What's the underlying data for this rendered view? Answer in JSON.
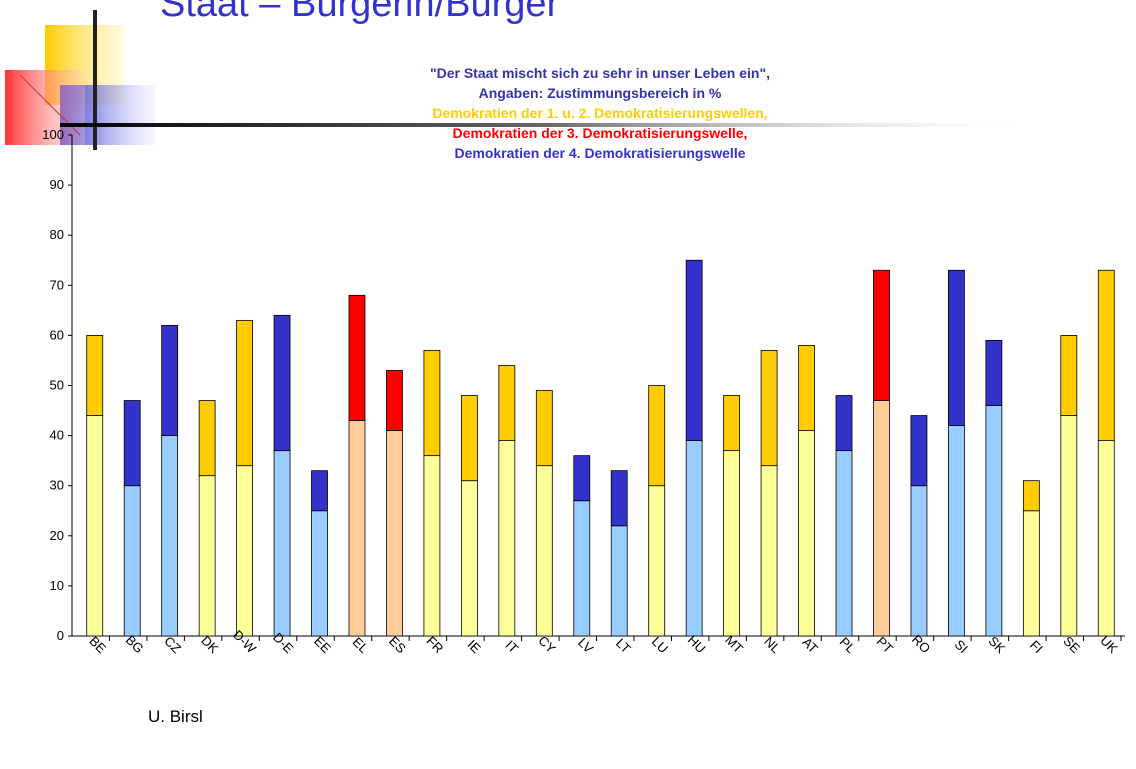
{
  "slide_title": "Staat – Bürgerin/Bürger",
  "footer": "U. Birsl",
  "chart_data": {
    "type": "stacked_bar",
    "title_lines": [
      {
        "text": "\"Der Staat mischt sich zu sehr in unser Leben ein\",",
        "color": "#3333aa"
      },
      {
        "text": "Angaben: Zustimmungsbereich in %",
        "color": "#3333aa"
      },
      {
        "text": "Demokratien der 1. u. 2. Demokratisierungswellen,",
        "color": "#ffcc00"
      },
      {
        "text": "Demokratien der 3. Demokratisierungswelle,",
        "color": "#ff0000"
      },
      {
        "text": "Demokratien der 4. Demokratisierungswelle",
        "color": "#3333cc"
      }
    ],
    "categories": [
      "BE",
      "BG",
      "CZ",
      "DK",
      "D-W",
      "D-E",
      "EE",
      "EL",
      "ES",
      "FR",
      "IE",
      "IT",
      "CY",
      "LV",
      "LT",
      "LU",
      "HU",
      "MT",
      "NL",
      "AT",
      "PL",
      "PT",
      "RO",
      "SI",
      "SK",
      "FI",
      "SE",
      "UK"
    ],
    "series": [
      {
        "values": [
          44,
          30,
          40,
          32,
          34,
          37,
          25,
          43,
          41,
          36,
          31,
          39,
          34,
          27,
          22,
          30,
          39,
          37,
          34,
          41,
          37,
          47,
          30,
          42,
          46,
          25,
          44,
          39
        ],
        "colors": [
          "#ffff99",
          "#99ccff",
          "#99ccff",
          "#ffff99",
          "#ffff99",
          "#99ccff",
          "#99ccff",
          "#ffcc99",
          "#ffcc99",
          "#ffff99",
          "#ffff99",
          "#ffff99",
          "#ffff99",
          "#99ccff",
          "#99ccff",
          "#ffff99",
          "#99ccff",
          "#ffff99",
          "#ffff99",
          "#ffff99",
          "#99ccff",
          "#ffcc99",
          "#99ccff",
          "#99ccff",
          "#99ccff",
          "#ffff99",
          "#ffff99",
          "#ffff99"
        ]
      },
      {
        "values": [
          16,
          17,
          22,
          15,
          29,
          27,
          8,
          25,
          12,
          21,
          17,
          15,
          15,
          9,
          11,
          20,
          36,
          11,
          23,
          17,
          11,
          26,
          14,
          31,
          13,
          6,
          16,
          34
        ],
        "colors": [
          "#ffcc00",
          "#3333cc",
          "#3333cc",
          "#ffcc00",
          "#ffcc00",
          "#3333cc",
          "#3333cc",
          "#ff0000",
          "#ff0000",
          "#ffcc00",
          "#ffcc00",
          "#ffcc00",
          "#ffcc00",
          "#3333cc",
          "#3333cc",
          "#ffcc00",
          "#3333cc",
          "#ffcc00",
          "#ffcc00",
          "#ffcc00",
          "#3333cc",
          "#ff0000",
          "#3333cc",
          "#3333cc",
          "#3333cc",
          "#ffcc00",
          "#ffcc00",
          "#ffcc00"
        ]
      }
    ],
    "ylim": [
      0,
      100
    ],
    "yticks": [
      0,
      10,
      20,
      30,
      40,
      50,
      60,
      70,
      80,
      90,
      100
    ]
  }
}
